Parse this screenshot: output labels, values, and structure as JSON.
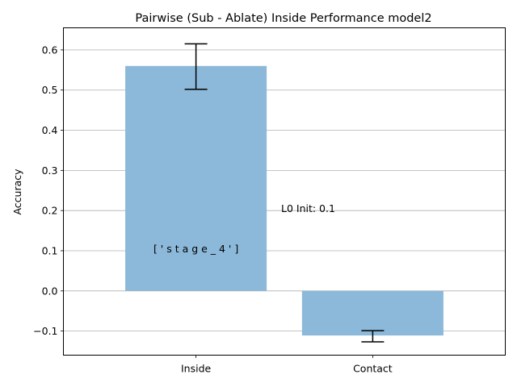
{
  "chart_data": {
    "type": "bar",
    "title": "Pairwise (Sub - Ablate) Inside Performance model2",
    "xlabel": "",
    "ylabel": "Accuracy",
    "categories": [
      "Inside",
      "Contact"
    ],
    "values": [
      0.56,
      -0.111
    ],
    "error_low": [
      0.502,
      -0.127
    ],
    "error_high": [
      0.615,
      -0.099
    ],
    "ylim": [
      -0.16,
      0.655
    ],
    "yticks": [
      -0.1,
      0.0,
      0.1,
      0.2,
      0.3,
      0.4,
      0.5,
      0.6
    ],
    "ytick_labels": [
      "−0.1",
      "0.0",
      "0.1",
      "0.2",
      "0.3",
      "0.4",
      "0.5",
      "0.6"
    ],
    "grid": "horizontal",
    "bar_color": "#8cb9d9",
    "annotations": [
      {
        "text": "['stage_4']",
        "x": 0,
        "y": 0.105
      },
      {
        "text": "L0 Init: 0.1",
        "x": 0.5,
        "y": 0.205
      }
    ]
  }
}
